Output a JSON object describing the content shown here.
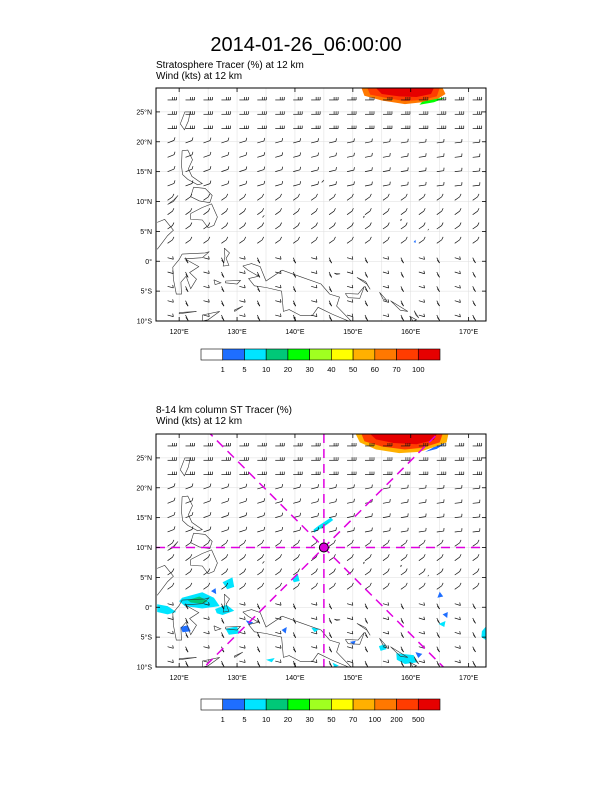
{
  "title": "2014-01-26_06:00:00",
  "chart_data": [
    {
      "type": "heatmap",
      "subtitle_line1": "Stratosphere Tracer   (%)     at   12 km",
      "subtitle_line2": "Wind   (kts)     at   12 km",
      "x_range": [
        116,
        173
      ],
      "y_range": [
        -10,
        29
      ],
      "x_ticks": [
        120,
        130,
        140,
        150,
        160,
        170
      ],
      "x_tick_labels": [
        "120°E",
        "130°E",
        "140°E",
        "150°E",
        "160°E",
        "170°E"
      ],
      "y_ticks": [
        25,
        20,
        15,
        10,
        5,
        0,
        -5,
        -10
      ],
      "y_tick_labels": [
        "25°N",
        "20°N",
        "15°N",
        "10°N",
        "5°N",
        "0°",
        "5°S",
        "10°S"
      ],
      "colorbar_labels": [
        "1",
        "5",
        "10",
        "20",
        "30",
        "40",
        "50",
        "60",
        "70",
        "100"
      ],
      "colorbar_colors": [
        "#ffffff",
        "#1e6eff",
        "#00e5ff",
        "#00c878",
        "#00ff00",
        "#a0ff20",
        "#ffff00",
        "#ffb000",
        "#ff7800",
        "#ff3c00",
        "#e60000"
      ],
      "marker": null
    },
    {
      "type": "heatmap",
      "subtitle_line1": "8-14 km column ST Tracer   (%)",
      "subtitle_line2": "Wind   (kts)     at   12 km",
      "x_range": [
        116,
        173
      ],
      "y_range": [
        -10,
        29
      ],
      "x_ticks": [
        120,
        130,
        140,
        150,
        160,
        170
      ],
      "x_tick_labels": [
        "120°E",
        "130°E",
        "140°E",
        "150°E",
        "160°E",
        "170°E"
      ],
      "y_ticks": [
        25,
        20,
        15,
        10,
        5,
        0,
        -5,
        -10
      ],
      "y_tick_labels": [
        "25°N",
        "20°N",
        "15°N",
        "10°N",
        "5°N",
        "0°",
        "5°S",
        "10°S"
      ],
      "colorbar_labels": [
        "1",
        "5",
        "10",
        "20",
        "30",
        "50",
        "70",
        "100",
        "200",
        "500"
      ],
      "colorbar_colors": [
        "#ffffff",
        "#1e6eff",
        "#00e5ff",
        "#00c878",
        "#00ff00",
        "#a0ff20",
        "#ffff00",
        "#ffb000",
        "#ff7800",
        "#ff3c00",
        "#e60000"
      ],
      "marker": {
        "lon": 145,
        "lat": 10
      }
    }
  ]
}
